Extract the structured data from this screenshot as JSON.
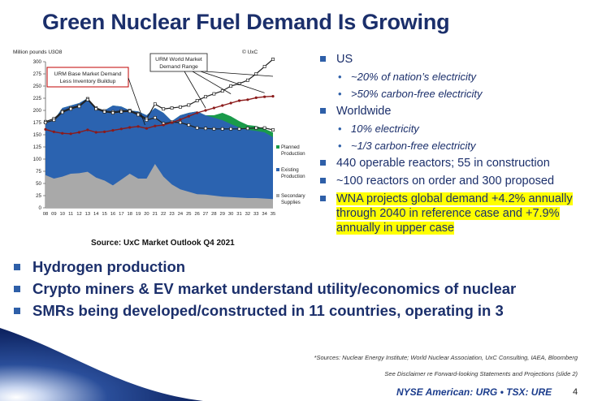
{
  "slide": {
    "title": "Green Nuclear Fuel Demand Is Growing",
    "source_note": "Source: UxC Market Outlook Q4 2021",
    "footnote_sources": "*Sources: Nuclear Energy Institute; World Nuclear Association, UxC Consulting, IAEA, Bloomberg",
    "footnote_disclaimer": "See Disclaimer re Forward-looking Statements and Projections (slide 2)",
    "ticker": "NYSE American: URG • TSX: URE",
    "page_number": "4"
  },
  "right_bullets": {
    "us": "US",
    "us_sub1": "~20% of nation’s electricity",
    "us_sub2": ">50% carbon-free electricity",
    "world": "Worldwide",
    "world_sub1": "10% electricity",
    "world_sub2": "~1/3 carbon-free electricity",
    "reactors": "440 operable reactors; 55 in construction",
    "orders": "~100 reactors on order and 300 proposed",
    "wna": "WNA projects global demand +4.2% annually through 2040 in reference case and +7.9% annually in upper case"
  },
  "bottom_bullets": {
    "b1": "Hydrogen production",
    "b2": "Crypto miners & EV market understand utility/economics of nuclear",
    "b3": "SMRs being developed/constructed in 11 countries, operating in 3"
  },
  "chart_data": {
    "type": "area",
    "ylabel": "Million pounds U3O8",
    "copyright": "© UxC",
    "ylim": [
      0,
      300
    ],
    "yticks": [
      0,
      25,
      50,
      75,
      100,
      125,
      150,
      175,
      200,
      225,
      250,
      275,
      300
    ],
    "categories": [
      "08",
      "09",
      "10",
      "11",
      "12",
      "13",
      "14",
      "15",
      "16",
      "17",
      "18",
      "19",
      "20",
      "21",
      "22",
      "23",
      "24",
      "25",
      "26",
      "27",
      "28",
      "29",
      "30",
      "31",
      "32",
      "33",
      "34",
      "35"
    ],
    "series": [
      {
        "name": "Secondary Supplies",
        "color": "#a9a9a9",
        "values": [
          67,
          60,
          64,
          70,
          71,
          74,
          62,
          56,
          46,
          58,
          70,
          60,
          60,
          90,
          64,
          48,
          38,
          33,
          28,
          27,
          25,
          23,
          22,
          21,
          20,
          20,
          19,
          18
        ]
      },
      {
        "name": "Existing Production",
        "color": "#2b63b0",
        "values": [
          175,
          180,
          205,
          210,
          215,
          225,
          205,
          200,
          210,
          208,
          200,
          198,
          190,
          205,
          195,
          178,
          190,
          195,
          198,
          190,
          185,
          180,
          172,
          165,
          160,
          158,
          155,
          145
        ]
      },
      {
        "name": "Planned Production",
        "color": "#1a9a4a",
        "values": [
          175,
          180,
          205,
          210,
          215,
          225,
          205,
          200,
          210,
          208,
          200,
          198,
          190,
          205,
          195,
          178,
          190,
          195,
          198,
          190,
          190,
          195,
          188,
          178,
          170,
          168,
          162,
          155
        ]
      }
    ],
    "lines": [
      {
        "name": "URM World Market Demand Range (upper)",
        "color": "#222222",
        "values": [
          177,
          183,
          198,
          205,
          210,
          224,
          205,
          199,
          197,
          199,
          200,
          193,
          183,
          213,
          203,
          205,
          207,
          211,
          220,
          228,
          234,
          240,
          250,
          255,
          262,
          275,
          290,
          305
        ]
      },
      {
        "name": "URM World Market Demand Range (lower)",
        "color": "#222222",
        "values": [
          175,
          180,
          196,
          203,
          208,
          222,
          203,
          197,
          195,
          197,
          198,
          191,
          180,
          185,
          173,
          176,
          175,
          170,
          164,
          163,
          162,
          162,
          162,
          162,
          163,
          164,
          164,
          160
        ]
      },
      {
        "name": "URM World Market Demand (reference)",
        "color": "#8b1a1a",
        "values": [
          161,
          156,
          153,
          152,
          155,
          160,
          155,
          156,
          159,
          162,
          165,
          167,
          163,
          168,
          170,
          175,
          181,
          188,
          195,
          200,
          205,
          210,
          215,
          220,
          222,
          226,
          228,
          229
        ]
      }
    ],
    "callouts": {
      "base": "URM Base Market Demand Less Inventory Buildup",
      "range": "URM World Market Demand Range"
    },
    "legend": [
      "Planned Production",
      "Existing Production",
      "Secondary Supplies"
    ]
  }
}
